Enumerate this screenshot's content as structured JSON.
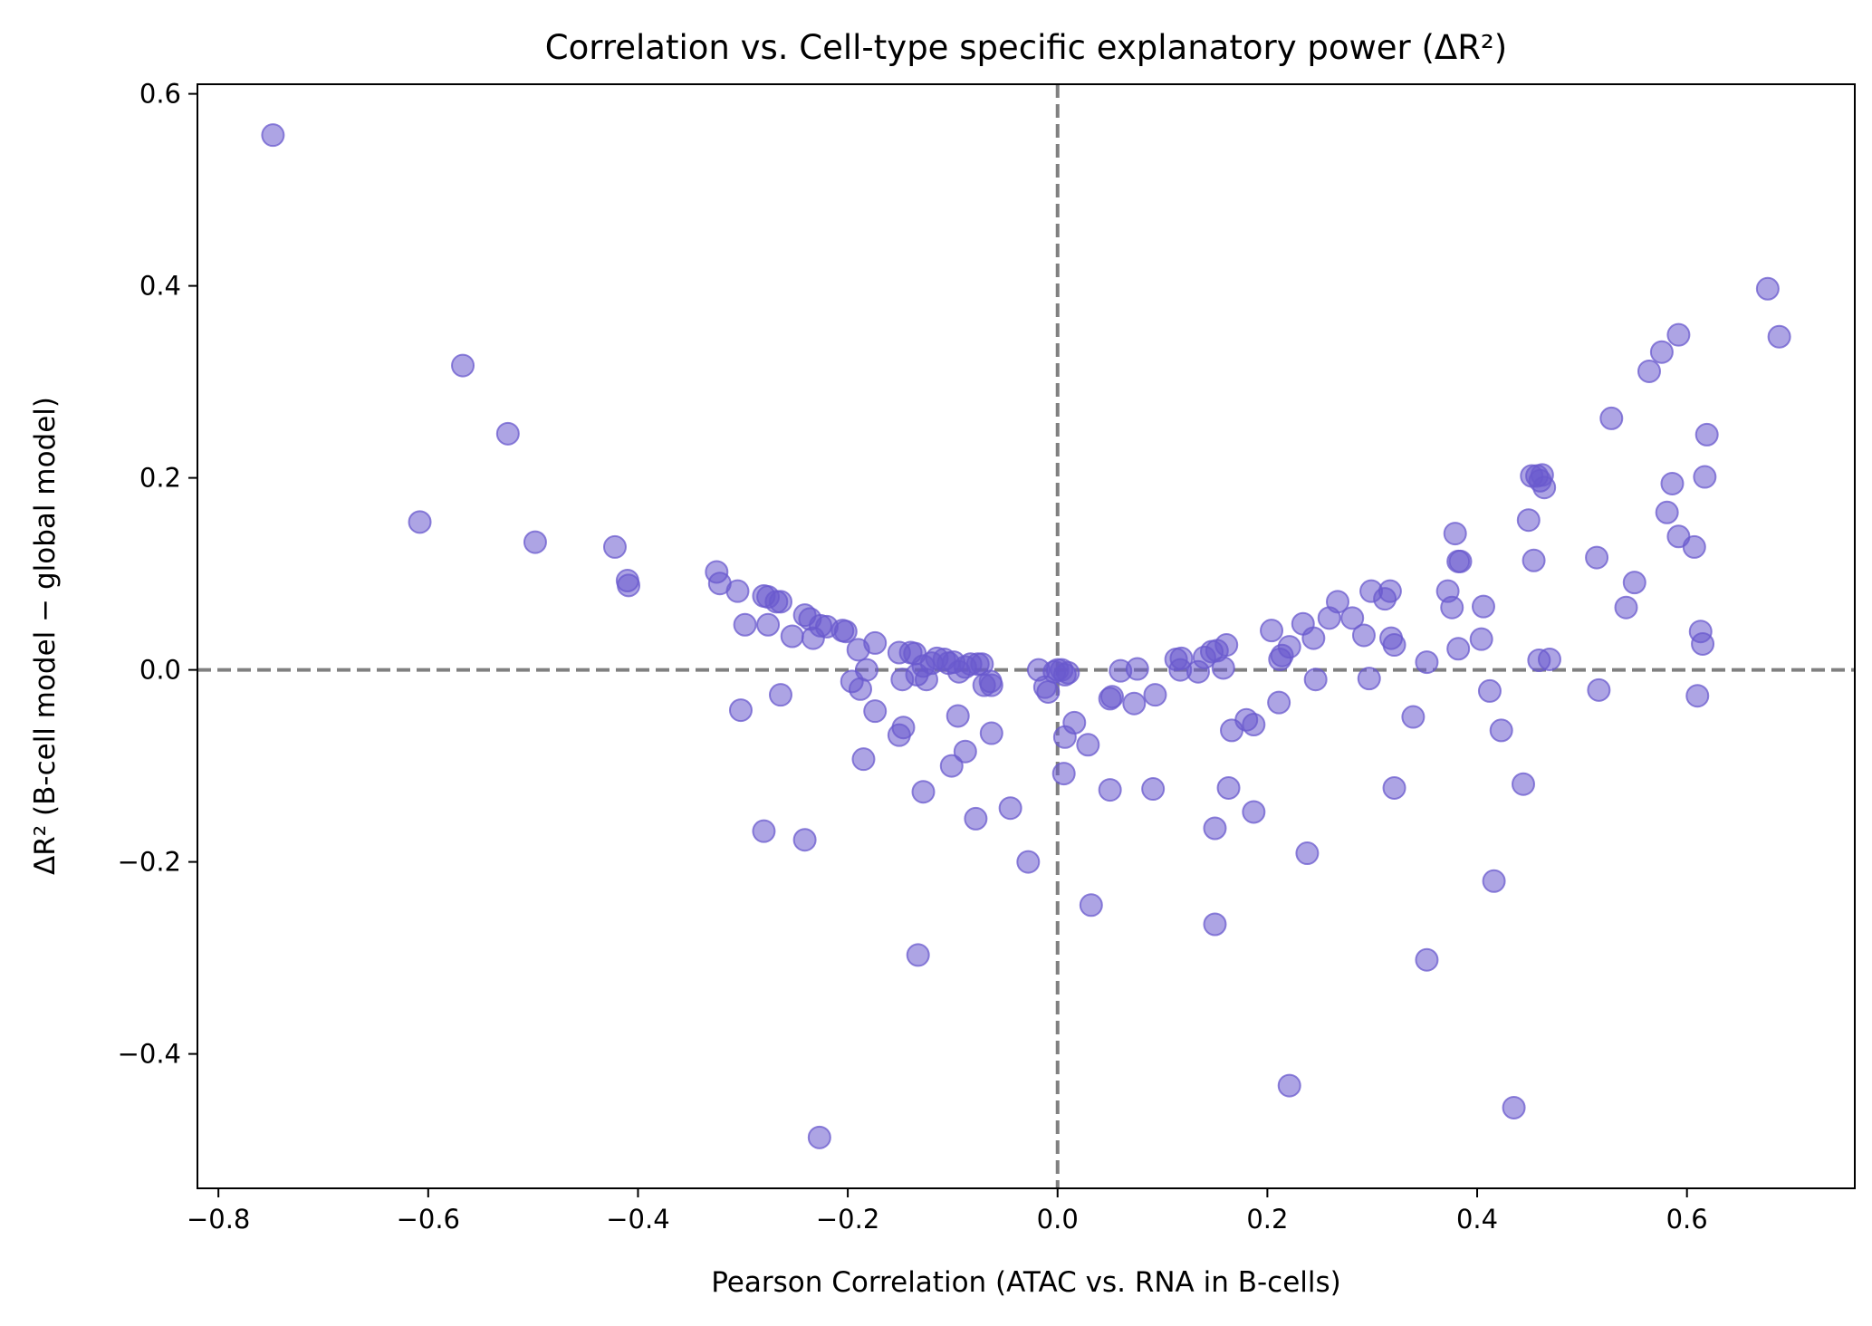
{
  "chart_data": {
    "type": "scatter",
    "title": "Correlation vs. Cell-type specific explanatory power (ΔR²)",
    "xlabel": "Pearson Correlation (ATAC vs. RNA in B-cells)",
    "ylabel": "ΔR² (B-cell model − global model)",
    "xlim": [
      -0.82,
      0.76
    ],
    "ylim": [
      -0.54,
      0.61
    ],
    "xticks": [
      -0.8,
      -0.6,
      -0.4,
      -0.2,
      0.0,
      0.2,
      0.4,
      0.6
    ],
    "xtick_labels": [
      "−0.8",
      "−0.6",
      "−0.4",
      "−0.2",
      "0.0",
      "0.2",
      "0.4",
      "0.6"
    ],
    "yticks": [
      -0.4,
      -0.2,
      0.0,
      0.2,
      0.4,
      0.6
    ],
    "ytick_labels": [
      "−0.4",
      "−0.2",
      "0.0",
      "0.2",
      "0.4",
      "0.6"
    ],
    "reference_lines": {
      "x": 0.0,
      "y": 0.0,
      "style": "dashed",
      "color": "#808080"
    },
    "marker_color": "#6a5acd",
    "grid": false,
    "points": [
      {
        "x": -0.748,
        "y": 0.557
      },
      {
        "x": -0.567,
        "y": 0.317
      },
      {
        "x": -0.608,
        "y": 0.154
      },
      {
        "x": -0.524,
        "y": 0.246
      },
      {
        "x": -0.498,
        "y": 0.133
      },
      {
        "x": -0.422,
        "y": 0.128
      },
      {
        "x": -0.41,
        "y": 0.093
      },
      {
        "x": -0.409,
        "y": 0.088
      },
      {
        "x": -0.325,
        "y": 0.102
      },
      {
        "x": -0.322,
        "y": 0.09
      },
      {
        "x": -0.305,
        "y": 0.082
      },
      {
        "x": -0.298,
        "y": 0.047
      },
      {
        "x": -0.302,
        "y": -0.042
      },
      {
        "x": -0.28,
        "y": 0.077
      },
      {
        "x": -0.276,
        "y": 0.076
      },
      {
        "x": -0.276,
        "y": 0.047
      },
      {
        "x": -0.268,
        "y": 0.071
      },
      {
        "x": -0.264,
        "y": 0.071
      },
      {
        "x": -0.264,
        "y": -0.026
      },
      {
        "x": -0.253,
        "y": 0.035
      },
      {
        "x": -0.241,
        "y": 0.057
      },
      {
        "x": -0.236,
        "y": 0.053
      },
      {
        "x": -0.233,
        "y": 0.033
      },
      {
        "x": -0.226,
        "y": 0.046
      },
      {
        "x": -0.22,
        "y": 0.045
      },
      {
        "x": -0.205,
        "y": 0.041
      },
      {
        "x": -0.202,
        "y": 0.04
      },
      {
        "x": -0.196,
        "y": -0.012
      },
      {
        "x": -0.19,
        "y": 0.021
      },
      {
        "x": -0.188,
        "y": -0.02
      },
      {
        "x": -0.182,
        "y": 0.0
      },
      {
        "x": -0.174,
        "y": 0.028
      },
      {
        "x": -0.174,
        "y": -0.043
      },
      {
        "x": -0.185,
        "y": -0.093
      },
      {
        "x": -0.28,
        "y": -0.168
      },
      {
        "x": -0.241,
        "y": -0.177
      },
      {
        "x": -0.151,
        "y": 0.018
      },
      {
        "x": -0.148,
        "y": -0.01
      },
      {
        "x": -0.14,
        "y": 0.018
      },
      {
        "x": -0.136,
        "y": 0.017
      },
      {
        "x": -0.134,
        "y": -0.005
      },
      {
        "x": -0.128,
        "y": 0.004
      },
      {
        "x": -0.125,
        "y": -0.01
      },
      {
        "x": -0.12,
        "y": 0.007
      },
      {
        "x": -0.115,
        "y": 0.012
      },
      {
        "x": -0.108,
        "y": 0.011
      },
      {
        "x": -0.104,
        "y": 0.007
      },
      {
        "x": -0.099,
        "y": 0.008
      },
      {
        "x": -0.094,
        "y": -0.002
      },
      {
        "x": -0.088,
        "y": 0.003
      },
      {
        "x": -0.083,
        "y": 0.006
      },
      {
        "x": -0.076,
        "y": 0.006
      },
      {
        "x": -0.072,
        "y": 0.006
      },
      {
        "x": -0.07,
        "y": -0.016
      },
      {
        "x": -0.064,
        "y": -0.012
      },
      {
        "x": -0.063,
        "y": -0.016
      },
      {
        "x": -0.147,
        "y": -0.06
      },
      {
        "x": -0.151,
        "y": -0.068
      },
      {
        "x": -0.095,
        "y": -0.048
      },
      {
        "x": -0.063,
        "y": -0.066
      },
      {
        "x": -0.088,
        "y": -0.085
      },
      {
        "x": -0.101,
        "y": -0.1
      },
      {
        "x": -0.128,
        "y": -0.127
      },
      {
        "x": -0.078,
        "y": -0.155
      },
      {
        "x": -0.045,
        "y": -0.144
      },
      {
        "x": -0.028,
        "y": -0.2
      },
      {
        "x": -0.133,
        "y": -0.297
      },
      {
        "x": -0.227,
        "y": -0.487
      },
      {
        "x": -0.018,
        "y": 0.0
      },
      {
        "x": -0.012,
        "y": -0.018
      },
      {
        "x": -0.009,
        "y": -0.023
      },
      {
        "x": -0.003,
        "y": -0.002
      },
      {
        "x": 0.0,
        "y": 0.0
      },
      {
        "x": 0.004,
        "y": 0.0
      },
      {
        "x": 0.007,
        "y": -0.005
      },
      {
        "x": 0.01,
        "y": -0.003
      },
      {
        "x": 0.007,
        "y": -0.07
      },
      {
        "x": 0.016,
        "y": -0.055
      },
      {
        "x": 0.006,
        "y": -0.108
      },
      {
        "x": 0.029,
        "y": -0.078
      },
      {
        "x": 0.032,
        "y": -0.245
      },
      {
        "x": 0.05,
        "y": -0.03
      },
      {
        "x": 0.052,
        "y": -0.028
      },
      {
        "x": 0.06,
        "y": -0.001
      },
      {
        "x": 0.073,
        "y": -0.035
      },
      {
        "x": 0.076,
        "y": 0.001
      },
      {
        "x": 0.093,
        "y": -0.026
      },
      {
        "x": 0.05,
        "y": -0.125
      },
      {
        "x": 0.091,
        "y": -0.124
      },
      {
        "x": 0.113,
        "y": 0.011
      },
      {
        "x": 0.118,
        "y": 0.012
      },
      {
        "x": 0.117,
        "y": 0.0
      },
      {
        "x": 0.134,
        "y": -0.002
      },
      {
        "x": 0.14,
        "y": 0.013
      },
      {
        "x": 0.147,
        "y": 0.019
      },
      {
        "x": 0.152,
        "y": 0.02
      },
      {
        "x": 0.158,
        "y": 0.002
      },
      {
        "x": 0.161,
        "y": 0.026
      },
      {
        "x": 0.166,
        "y": -0.063
      },
      {
        "x": 0.163,
        "y": -0.123
      },
      {
        "x": 0.15,
        "y": -0.165
      },
      {
        "x": 0.15,
        "y": -0.265
      },
      {
        "x": 0.18,
        "y": -0.052
      },
      {
        "x": 0.187,
        "y": -0.057
      },
      {
        "x": 0.187,
        "y": -0.148
      },
      {
        "x": 0.204,
        "y": 0.041
      },
      {
        "x": 0.212,
        "y": 0.011
      },
      {
        "x": 0.214,
        "y": 0.015
      },
      {
        "x": 0.221,
        "y": 0.024
      },
      {
        "x": 0.211,
        "y": -0.034
      },
      {
        "x": 0.234,
        "y": 0.048
      },
      {
        "x": 0.244,
        "y": 0.033
      },
      {
        "x": 0.246,
        "y": -0.01
      },
      {
        "x": 0.238,
        "y": -0.191
      },
      {
        "x": 0.221,
        "y": -0.433
      },
      {
        "x": 0.259,
        "y": 0.054
      },
      {
        "x": 0.267,
        "y": 0.071
      },
      {
        "x": 0.281,
        "y": 0.054
      },
      {
        "x": 0.292,
        "y": 0.036
      },
      {
        "x": 0.299,
        "y": 0.082
      },
      {
        "x": 0.297,
        "y": -0.009
      },
      {
        "x": 0.312,
        "y": 0.074
      },
      {
        "x": 0.317,
        "y": 0.082
      },
      {
        "x": 0.318,
        "y": 0.033
      },
      {
        "x": 0.321,
        "y": 0.026
      },
      {
        "x": 0.321,
        "y": -0.123
      },
      {
        "x": 0.339,
        "y": -0.049
      },
      {
        "x": 0.352,
        "y": 0.008
      },
      {
        "x": 0.352,
        "y": -0.302
      },
      {
        "x": 0.372,
        "y": 0.082
      },
      {
        "x": 0.376,
        "y": 0.065
      },
      {
        "x": 0.379,
        "y": 0.142
      },
      {
        "x": 0.382,
        "y": 0.113
      },
      {
        "x": 0.384,
        "y": 0.113
      },
      {
        "x": 0.382,
        "y": 0.022
      },
      {
        "x": 0.404,
        "y": 0.032
      },
      {
        "x": 0.406,
        "y": 0.066
      },
      {
        "x": 0.412,
        "y": -0.022
      },
      {
        "x": 0.423,
        "y": -0.063
      },
      {
        "x": 0.416,
        "y": -0.22
      },
      {
        "x": 0.435,
        "y": -0.456
      },
      {
        "x": 0.444,
        "y": -0.119
      },
      {
        "x": 0.449,
        "y": 0.156
      },
      {
        "x": 0.452,
        "y": 0.202
      },
      {
        "x": 0.454,
        "y": 0.114
      },
      {
        "x": 0.457,
        "y": 0.202
      },
      {
        "x": 0.46,
        "y": 0.197
      },
      {
        "x": 0.462,
        "y": 0.203
      },
      {
        "x": 0.464,
        "y": 0.19
      },
      {
        "x": 0.459,
        "y": 0.01
      },
      {
        "x": 0.469,
        "y": 0.011
      },
      {
        "x": 0.514,
        "y": 0.117
      },
      {
        "x": 0.516,
        "y": -0.021
      },
      {
        "x": 0.528,
        "y": 0.262
      },
      {
        "x": 0.542,
        "y": 0.065
      },
      {
        "x": 0.55,
        "y": 0.091
      },
      {
        "x": 0.564,
        "y": 0.311
      },
      {
        "x": 0.576,
        "y": 0.331
      },
      {
        "x": 0.581,
        "y": 0.164
      },
      {
        "x": 0.586,
        "y": 0.194
      },
      {
        "x": 0.592,
        "y": 0.139
      },
      {
        "x": 0.592,
        "y": 0.349
      },
      {
        "x": 0.607,
        "y": 0.128
      },
      {
        "x": 0.61,
        "y": -0.027
      },
      {
        "x": 0.613,
        "y": 0.04
      },
      {
        "x": 0.615,
        "y": 0.027
      },
      {
        "x": 0.617,
        "y": 0.201
      },
      {
        "x": 0.619,
        "y": 0.245
      },
      {
        "x": 0.677,
        "y": 0.397
      },
      {
        "x": 0.688,
        "y": 0.347
      }
    ]
  }
}
